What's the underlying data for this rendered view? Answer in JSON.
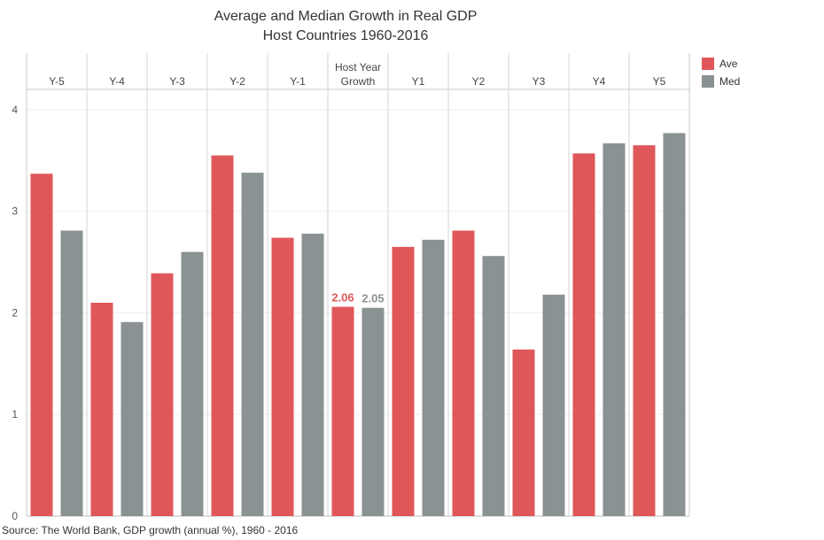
{
  "chart_data": {
    "type": "bar",
    "title": "Average and Median Growth in Real GDP",
    "subtitle": "Host Countries 1960-2016",
    "categories": [
      [
        "Y-5"
      ],
      [
        "Y-4"
      ],
      [
        "Y-3"
      ],
      [
        "Y-2"
      ],
      [
        "Y-1"
      ],
      [
        "Host Year",
        "Growth"
      ],
      [
        "Y1"
      ],
      [
        "Y2"
      ],
      [
        "Y3"
      ],
      [
        "Y4"
      ],
      [
        "Y5"
      ]
    ],
    "series": [
      {
        "name": "Ave",
        "color": "#e05759",
        "values": [
          3.37,
          2.1,
          2.39,
          3.55,
          2.74,
          2.06,
          2.65,
          2.81,
          1.64,
          3.57,
          3.65
        ]
      },
      {
        "name": "Med",
        "color": "#8b9293",
        "values": [
          2.81,
          1.91,
          2.6,
          3.38,
          2.78,
          2.05,
          2.72,
          2.56,
          2.18,
          3.67,
          3.77
        ]
      }
    ],
    "data_labels": [
      {
        "category_index": 5,
        "series_index": 0,
        "text": "2.06"
      },
      {
        "category_index": 5,
        "series_index": 1,
        "text": "2.05"
      }
    ],
    "ylim": [
      0,
      4.2
    ],
    "yticks": [
      0,
      1,
      2,
      3,
      4
    ],
    "xlabel": "",
    "ylabel": "",
    "grid": true,
    "legend_position": "top-right"
  },
  "legend": {
    "items": [
      {
        "label": "Ave",
        "color": "#e05759"
      },
      {
        "label": "Med",
        "color": "#8b9293"
      }
    ]
  },
  "source_text": "Source: The World Bank, GDP growth (annual %), 1960 - 2016"
}
